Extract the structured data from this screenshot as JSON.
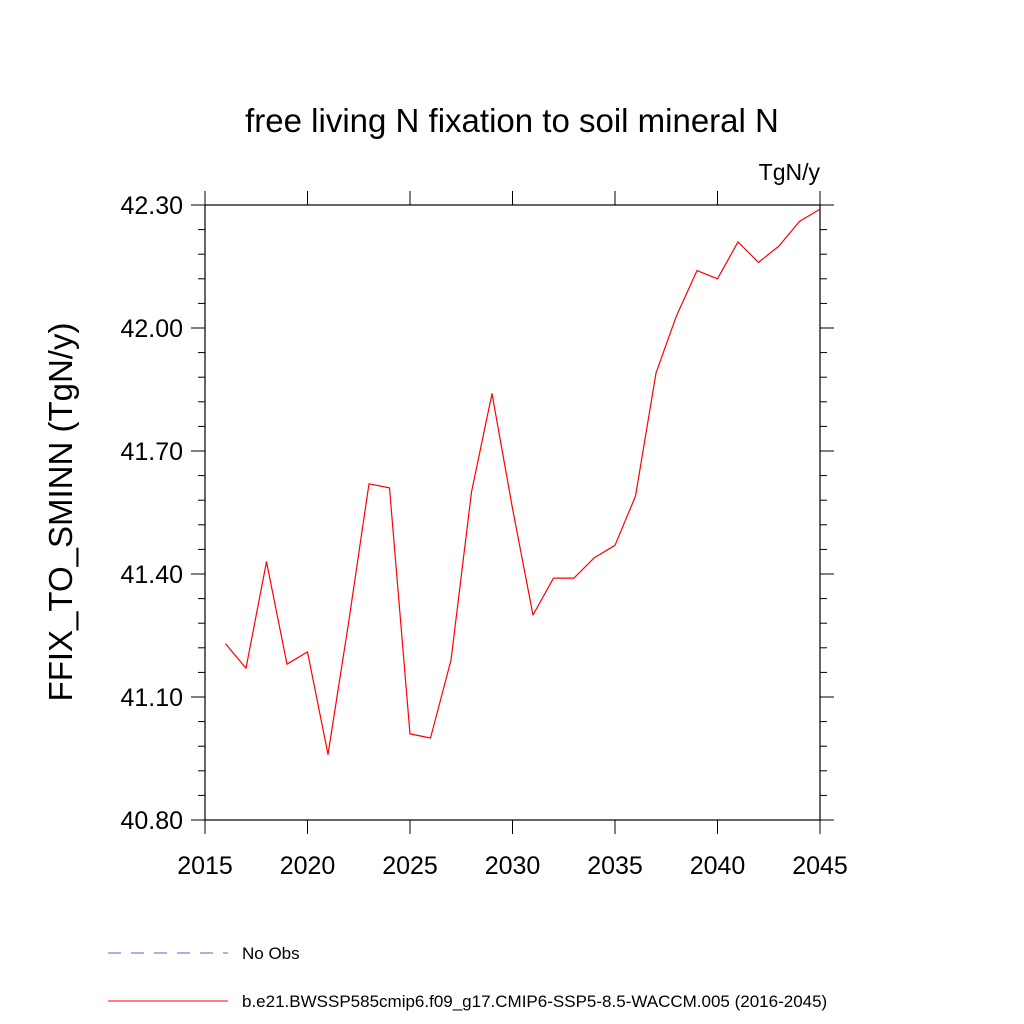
{
  "chart_data": {
    "type": "line",
    "title": "free living N fixation to soil mineral N",
    "units_label": "TgN/y",
    "xlabel": "",
    "ylabel": "FFIX_TO_SMINN  (TgN/y)",
    "xlim": [
      2015,
      2045
    ],
    "ylim": [
      40.8,
      42.3
    ],
    "x_ticks": [
      "2015",
      "2020",
      "2025",
      "2030",
      "2035",
      "2040",
      "2045"
    ],
    "y_ticks": [
      "40.80",
      "41.10",
      "41.40",
      "41.70",
      "42.00",
      "42.30"
    ],
    "grid": false,
    "legend_position": "bottom",
    "x": [
      2016,
      2017,
      2018,
      2019,
      2020,
      2021,
      2022,
      2023,
      2024,
      2025,
      2026,
      2027,
      2028,
      2029,
      2030,
      2031,
      2032,
      2033,
      2034,
      2035,
      2036,
      2037,
      2038,
      2039,
      2040,
      2041,
      2042,
      2043,
      2044,
      2045
    ],
    "series": [
      {
        "name": "b.e21.BWSSP585cmip6.f09_g17.CMIP6-SSP5-8.5-WACCM.005 (2016-2045)",
        "color": "#ff0000",
        "values": [
          41.23,
          41.17,
          41.43,
          41.18,
          41.21,
          40.96,
          41.28,
          41.62,
          41.61,
          41.01,
          41.0,
          41.19,
          41.6,
          41.84,
          41.56,
          41.3,
          41.39,
          41.39,
          41.44,
          41.47,
          41.59,
          41.89,
          42.03,
          42.14,
          42.12,
          42.21,
          42.16,
          42.2,
          42.26,
          42.29
        ]
      }
    ],
    "legend": [
      {
        "label": "No Obs",
        "color": "#6a5acd",
        "style": "dashed"
      },
      {
        "label": "b.e21.BWSSP585cmip6.f09_g17.CMIP6-SSP5-8.5-WACCM.005 (2016-2045)",
        "color": "#ff0000",
        "style": "solid"
      }
    ]
  }
}
